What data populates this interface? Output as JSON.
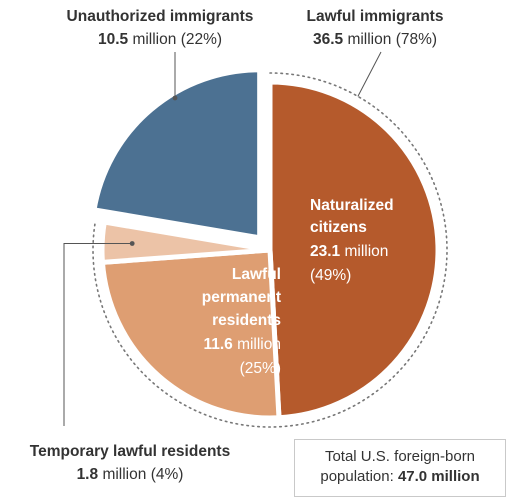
{
  "chart_data": {
    "type": "pie",
    "total": {
      "line1": "Total U.S. foreign-born",
      "line2_prefix": "population: ",
      "line2_value": "47.0 million"
    },
    "groups": [
      {
        "name": "Unauthorized immigrants",
        "value_text": "10.5",
        "unit": "million",
        "pct_text": "(22%)",
        "value": 10.5,
        "pct": 22
      },
      {
        "name": "Lawful immigrants",
        "value_text": "36.5",
        "unit": "million",
        "pct_text": "(78%)",
        "value": 36.5,
        "pct": 78
      }
    ],
    "slices": [
      {
        "key": "naturalized",
        "label_lines": [
          "Naturalized",
          "citizens"
        ],
        "value_text": "23.1",
        "unit": "million",
        "pct_text": "(49%)",
        "value": 23.1,
        "pct": 49,
        "color": "#b55a2c"
      },
      {
        "key": "permanent",
        "label_lines": [
          "Lawful",
          "permanent",
          "residents"
        ],
        "value_text": "11.6",
        "unit": "million",
        "pct_text": "(25%)",
        "value": 11.6,
        "pct": 25,
        "color": "#de9e72"
      },
      {
        "key": "temporary",
        "label_lines": [
          "Temporary lawful residents"
        ],
        "value_text": "1.8",
        "unit": "million",
        "pct_text": "(4%)",
        "value": 1.8,
        "pct": 4,
        "color": "#ecc3a7"
      },
      {
        "key": "unauthorized",
        "label_lines": [],
        "value_text": "10.5",
        "unit": "million",
        "pct_text": "(22%)",
        "value": 10.5,
        "pct": 22,
        "color": "#4c7192"
      }
    ],
    "colors": {
      "text_dark": "#333333",
      "text_light": "#ffffff",
      "leader": "#555555",
      "dotted_arc": "#777777",
      "box_border": "#c9c9c9"
    }
  }
}
